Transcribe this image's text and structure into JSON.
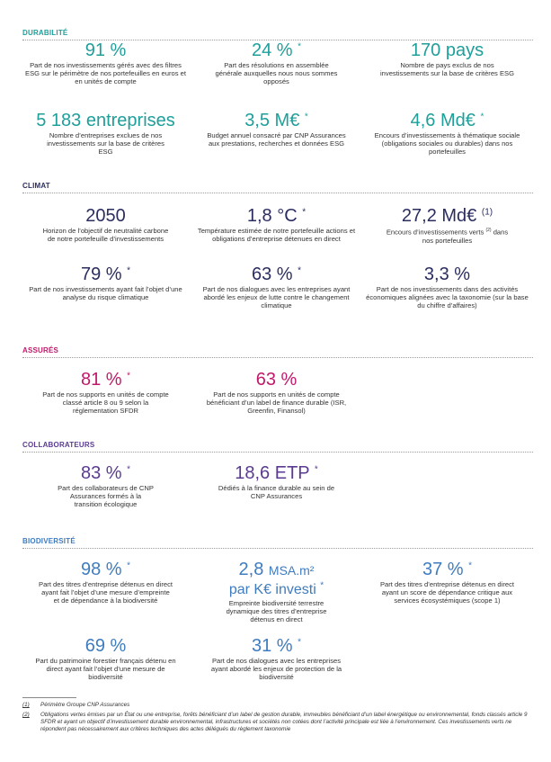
{
  "durabilite": {
    "title": "DURABILITÉ",
    "color": "#1e9f9a",
    "items": [
      {
        "value": "91 %",
        "mark": "",
        "desc": "Part de nos investissements gérés avec des filtres ESG sur le périmètre de nos portefeuilles en euros et en unités de compte"
      },
      {
        "value": "24 %",
        "mark": "*",
        "desc": "Part des résolutions en assemblée générale auxquelles nous nous sommes opposés"
      },
      {
        "value": "170 pays",
        "mark": "",
        "desc": "Nombre de pays exclus de nos investissements sur la base de critères ESG"
      },
      {
        "value": "5 183 entreprises",
        "mark": "",
        "desc": "Nombre d’entreprises exclues de nos investissements sur la base de critères ESG"
      },
      {
        "value": "3,5 M€",
        "mark": "*",
        "desc": "Budget annuel consacré par CNP Assurances aux prestations, recherches et données ESG"
      },
      {
        "value": "4,6 Md€",
        "mark": "*",
        "desc": "Encours d’investissements à thématique sociale (obligations sociales ou durables) dans nos portefeuilles"
      }
    ]
  },
  "climat": {
    "title": "CLIMAT",
    "color": "#2b2d5f",
    "items": [
      {
        "value": "2050",
        "mark": "",
        "desc": "Horizon de l’objectif de neutralité carbone de notre portefeuille d’investissements"
      },
      {
        "value": "1,8 °C",
        "mark": "*",
        "desc": "Température estimée de notre portefeuille actions et obligations d’entreprise détenues en direct"
      },
      {
        "value": "27,2 Md€",
        "mark": "(1)",
        "desc": "Encours d’investissements verts",
        "desc_mark": "(2)",
        "desc_tail": "dans nos portefeuilles"
      },
      {
        "value": "79 %",
        "mark": "*",
        "desc": "Part de nos investissements ayant fait l’objet d’une analyse du risque climatique"
      },
      {
        "value": "63 %",
        "mark": "*",
        "desc": "Part de nos dialogues avec les entreprises ayant abordé les enjeux de lutte contre le changement climatique"
      },
      {
        "value": "3,3 %",
        "mark": "",
        "desc": "Part de nos investissements dans des activités économiques alignées avec la taxonomie (sur la base du chiffre d’affaires)"
      }
    ]
  },
  "assures": {
    "title": "ASSURÉS",
    "color": "#c1196a",
    "items": [
      {
        "value": "81 %",
        "mark": "*",
        "desc": "Part de nos supports en unités de compte classé article 8 ou 9 selon la réglementation SFDR"
      },
      {
        "value": "63 %",
        "mark": "",
        "desc": "Part de nos supports en unités de compte bénéficiant d’un label de finance durable (ISR, Greenfin, Finansol)"
      }
    ]
  },
  "collaborateurs": {
    "title": "COLLABORATEURS",
    "color": "#5a3b91",
    "items": [
      {
        "value": "83 %",
        "mark": "*",
        "desc": "Part des collaborateurs de CNP Assurances formés à la transition écologique"
      },
      {
        "value": "18,6 ETP",
        "mark": "*",
        "desc": "Dédiés à la finance durable au sein de CNP Assurances"
      }
    ]
  },
  "biodiversite": {
    "title": "BIODIVERSITÉ",
    "color": "#3f7cbf",
    "items": [
      {
        "value": "98 %",
        "mark": "*",
        "desc": "Part des titres d’entreprise détenus en direct ayant fait l’objet d’une mesure d’empreinte et de dépendance à la biodiversité"
      },
      {
        "value": "2,8",
        "unit": "MSA.m²",
        "value2": "par K€ investi",
        "mark": "*",
        "desc": "Empreinte biodiversité terrestre dynamique des titres d’entreprise détenus en direct"
      },
      {
        "value": "37 %",
        "mark": "*",
        "desc": "Part des titres d’entreprise détenus en direct ayant un score de dépendance critique aux services écosystémiques (scope 1)"
      },
      {
        "value": "69 %",
        "mark": "",
        "desc": "Part du patrimoine forestier français détenu en direct ayant fait l’objet d’une mesure de biodiversité"
      },
      {
        "value": "31 %",
        "mark": "*",
        "desc": "Part de nos dialogues avec les entreprises ayant abordé les enjeux de protection de la biodiversité"
      }
    ]
  },
  "footnotes": [
    {
      "mark": "(1)",
      "text": "Périmètre Groupe CNP Assurances"
    },
    {
      "mark": "(2)",
      "text": "Obligations vertes émises par un État ou une entreprise, forêts bénéficiant d’un label de gestion durable, immeubles bénéficiant d’un label énergétique ou environnemental, fonds classés article 9 SFDR et ayant un objectif d’investissement durable environnemental, infrastructures et sociétés non cotées dont l’activité principale est liée à l’environnement. Ces investissements verts ne répondent pas nécessairement aux critères techniques des actes délégués du règlement taxonomie"
    }
  ]
}
